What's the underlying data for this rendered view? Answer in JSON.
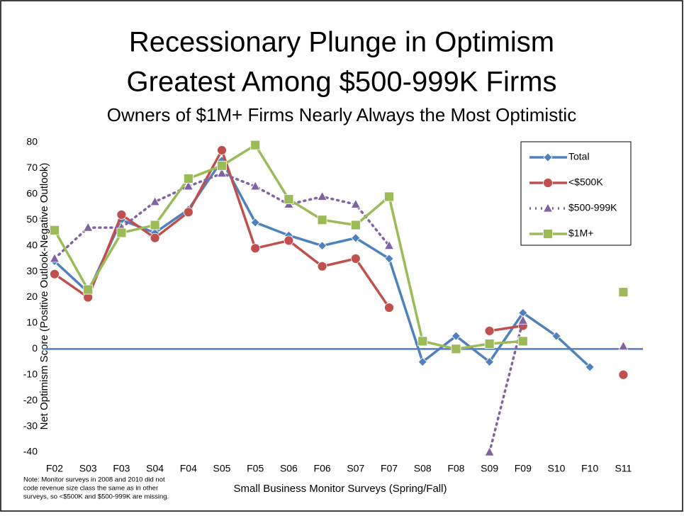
{
  "chart_data": {
    "type": "line",
    "title": [
      "Recessionary Plunge in Optimism",
      "Greatest Among $500-999K Firms"
    ],
    "subtitle": "Owners of $1M+ Firms Nearly Always the Most Optimistic",
    "y_label": "Net Optimism Score (Positive Outlook-Negative Outlook)",
    "x_label": "Small Business Monitor Surveys (Spring/Fall)",
    "note": [
      "Note: Monitor surveys in 2008 and 2010 did not",
      "code revenue size class the same as in other",
      "surveys, so <$500K and $500-999K are missing."
    ],
    "categories": [
      "F02",
      "S03",
      "F03",
      "S04",
      "F04",
      "S05",
      "F05",
      "S06",
      "F06",
      "S07",
      "F07",
      "S08",
      "F08",
      "S09",
      "F09",
      "S10",
      "F10",
      "S11"
    ],
    "series": [
      {
        "name": "Total",
        "color": "#4f81bd",
        "marker": "diamond",
        "dash": false,
        "values": [
          34,
          22,
          50,
          45,
          54,
          73,
          49,
          44,
          40,
          43,
          35,
          -5,
          5,
          -5,
          14,
          5,
          -7,
          null
        ]
      },
      {
        "name": "<$500K",
        "color": "#c0504d",
        "marker": "circle",
        "dash": false,
        "values": [
          29,
          20,
          52,
          43,
          53,
          77,
          39,
          42,
          32,
          35,
          16,
          null,
          null,
          7,
          9,
          null,
          null,
          -10
        ]
      },
      {
        "name": "$500-999K",
        "color": "#8064a2",
        "marker": "triangle",
        "dash": true,
        "values": [
          35,
          47,
          47,
          57,
          63,
          68,
          63,
          56,
          59,
          56,
          40,
          null,
          null,
          -40,
          11,
          null,
          null,
          1
        ]
      },
      {
        "name": "$1M+",
        "color": "#9bbb59",
        "marker": "square",
        "dash": false,
        "values": [
          46,
          23,
          45,
          48,
          66,
          71,
          79,
          58,
          50,
          48,
          59,
          3,
          0,
          2,
          3,
          null,
          null,
          22
        ]
      }
    ],
    "ylim": [
      -40,
      80
    ],
    "yticks": [
      -40,
      -30,
      -20,
      -10,
      0,
      10,
      20,
      30,
      40,
      50,
      60,
      70,
      80
    ],
    "zero_line_color": "#4f81bd",
    "legend": "upper right"
  }
}
